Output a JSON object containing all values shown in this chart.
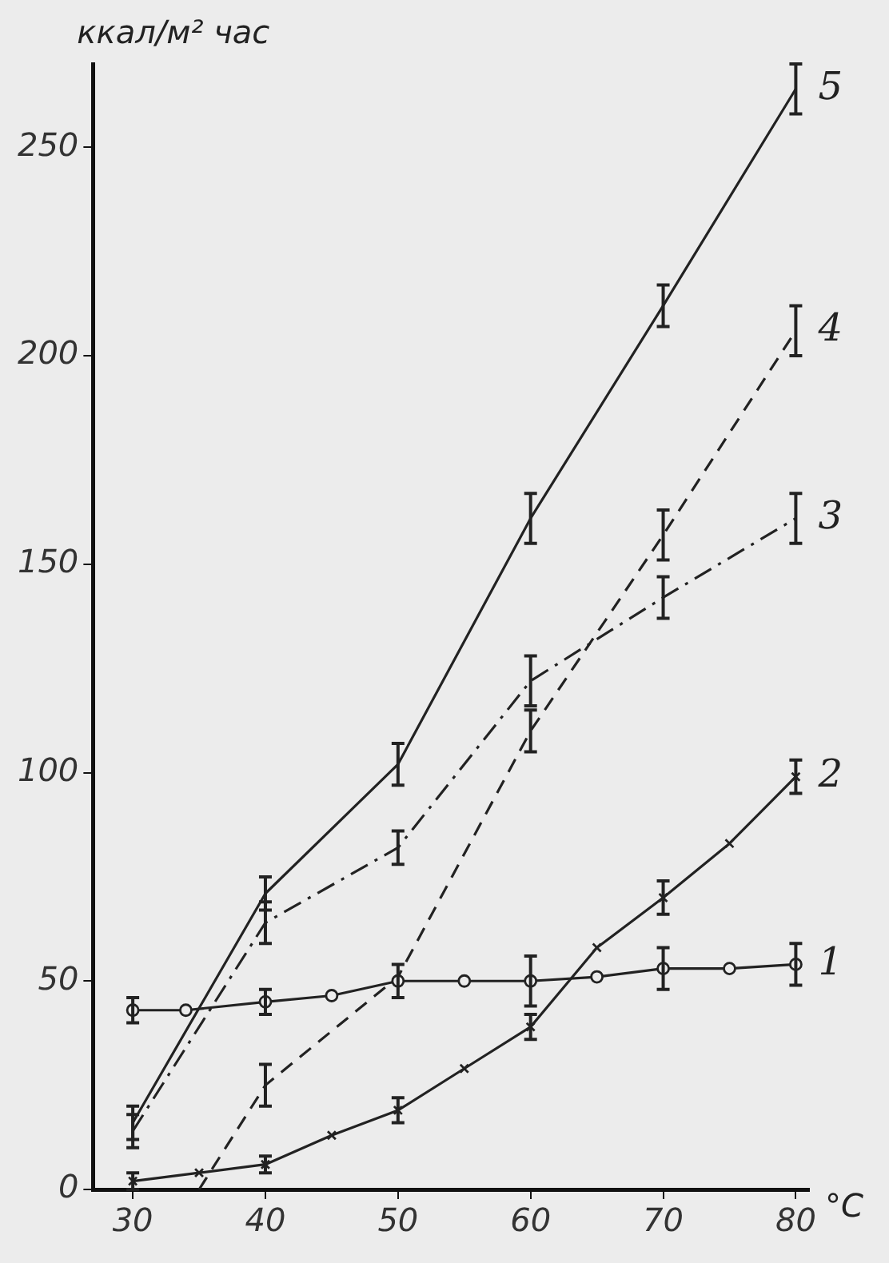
{
  "chart_data": {
    "type": "line",
    "ylabel": "ккал/м² час",
    "xlabel": "°C",
    "xlim": [
      27,
      81
    ],
    "xticks": [
      30,
      40,
      50,
      60,
      70,
      80
    ],
    "ylim": [
      0,
      270
    ],
    "yticks": [
      0,
      50,
      100,
      150,
      200,
      250
    ],
    "grid": false,
    "legend": false,
    "series": [
      {
        "name": "1",
        "color": "#222222",
        "marker": "circle",
        "line_style": "solid",
        "x": [
          30,
          34,
          40,
          45,
          50,
          55,
          60,
          65,
          70,
          75,
          80
        ],
        "values": [
          43,
          43,
          45,
          46.5,
          50,
          50,
          50,
          51,
          53,
          53,
          54
        ],
        "errors": [
          3,
          null,
          3,
          null,
          4,
          null,
          6,
          null,
          5,
          null,
          5
        ]
      },
      {
        "name": "2",
        "color": "#222222",
        "marker": "cross",
        "line_style": "solid",
        "x": [
          30,
          35,
          40,
          45,
          50,
          55,
          60,
          65,
          70,
          75,
          80
        ],
        "values": [
          2,
          4,
          6,
          13,
          19,
          29,
          39,
          58,
          70,
          83,
          99
        ],
        "errors": [
          2,
          null,
          2,
          null,
          3,
          null,
          3,
          null,
          4,
          null,
          4
        ]
      },
      {
        "name": "3",
        "color": "#222222",
        "marker": "none",
        "line_style": "dashdot",
        "x": [
          30,
          40,
          50,
          60,
          70,
          80
        ],
        "values": [
          14,
          64,
          82,
          122,
          142,
          161
        ],
        "errors": [
          4,
          5,
          4,
          6,
          5,
          6
        ]
      },
      {
        "name": "4",
        "color": "#222222",
        "marker": "none",
        "line_style": "dashed",
        "x": [
          35,
          40,
          50,
          60,
          70,
          80
        ],
        "values": [
          0,
          25,
          51,
          110,
          157,
          206
        ],
        "errors": [
          null,
          5,
          null,
          5,
          6,
          6
        ]
      },
      {
        "name": "5",
        "color": "#222222",
        "marker": "none",
        "line_style": "solid",
        "x": [
          30,
          40,
          50,
          60,
          70,
          80
        ],
        "values": [
          16,
          71,
          102,
          161,
          212,
          264
        ],
        "errors": [
          4,
          4,
          5,
          6,
          5,
          6
        ]
      }
    ]
  }
}
